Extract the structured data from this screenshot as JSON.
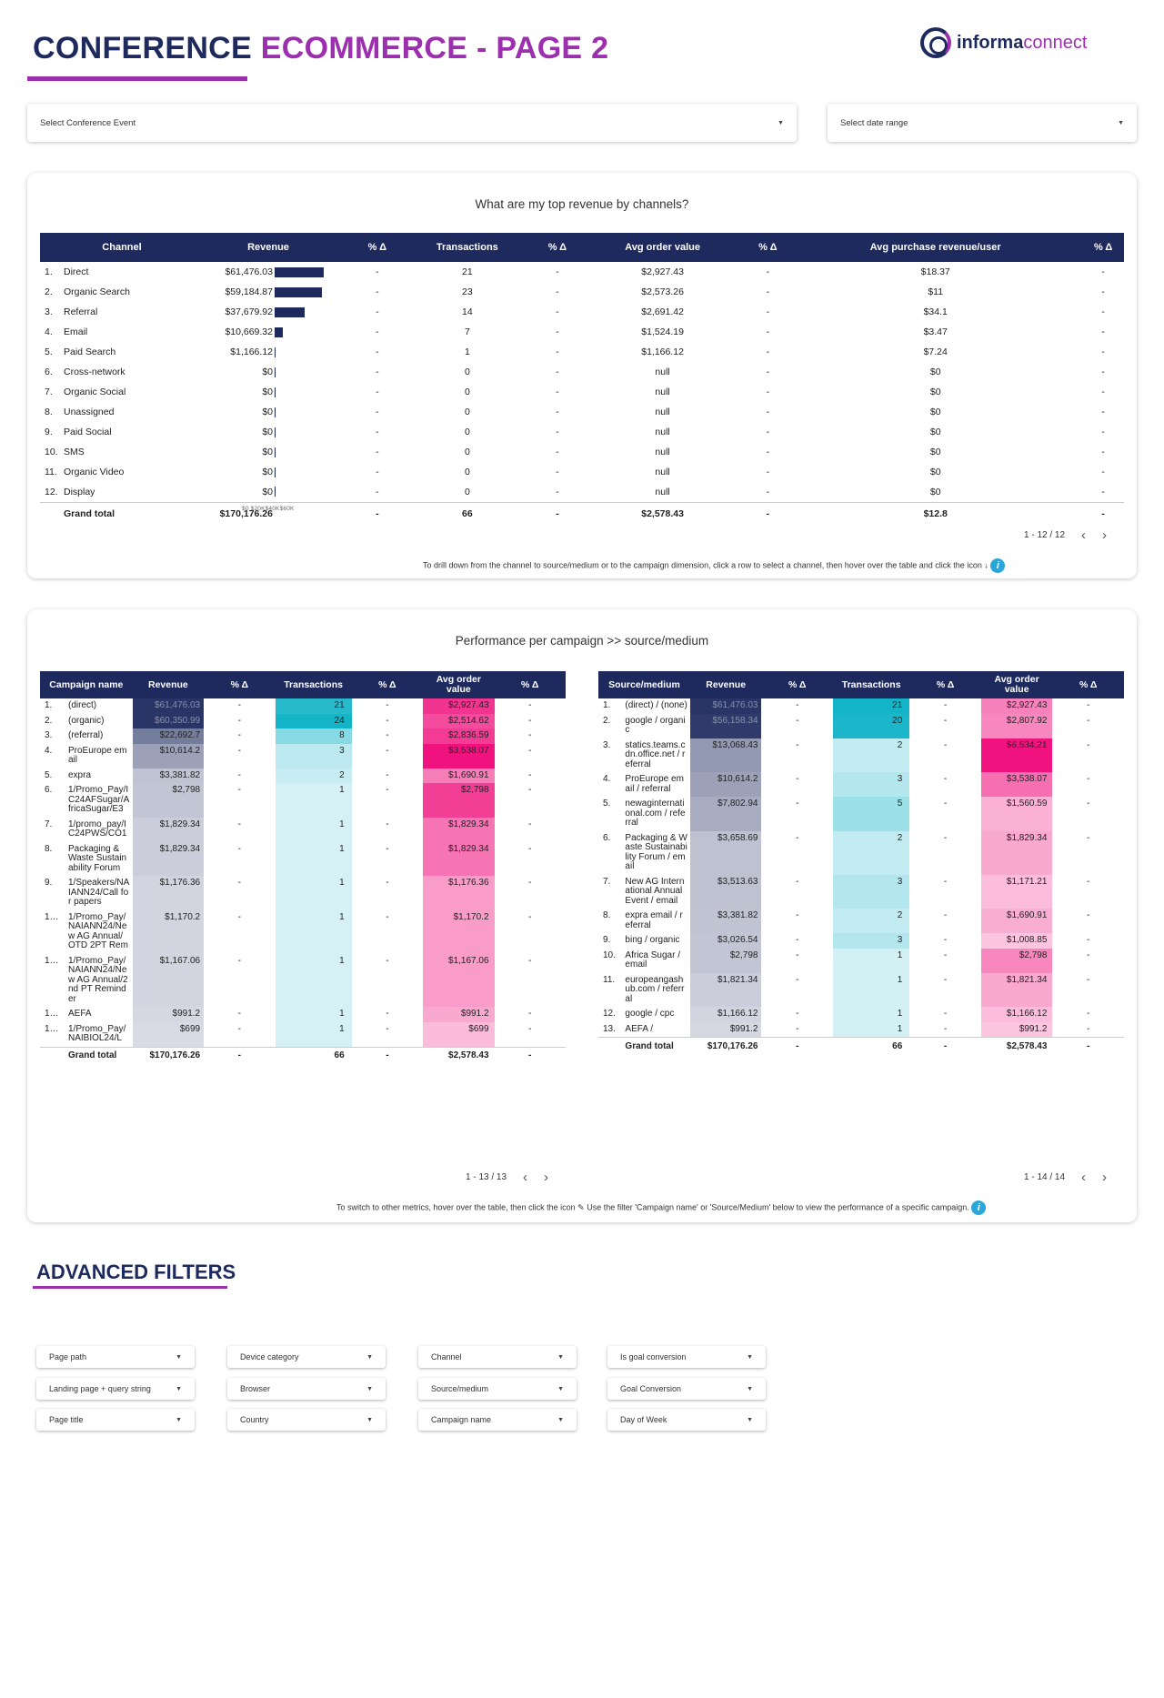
{
  "header": {
    "title_part1": "CONFERENCE",
    "title_part2": "ECOMMERCE - PAGE 2",
    "logo_part1": "informa",
    "logo_part2": "connect"
  },
  "filters": {
    "event": "Select Conference Event",
    "date": "Select date range"
  },
  "channels_card": {
    "title": "What are my top revenue by channels?",
    "headers": [
      "Channel",
      "Revenue",
      "% Δ",
      "Transactions",
      "% Δ",
      "Avg order value",
      "% Δ",
      "Avg purchase revenue/user",
      "% Δ"
    ],
    "axis": "$0 $20K$40K$60K",
    "rows": [
      {
        "n": "1.",
        "channel": "Direct",
        "revenue": "$61,476.03",
        "rv": 61476.03,
        "transactions": "21",
        "aov": "$2,927.43",
        "apru": "$18.37"
      },
      {
        "n": "2.",
        "channel": "Organic Search",
        "revenue": "$59,184.87",
        "rv": 59184.87,
        "transactions": "23",
        "aov": "$2,573.26",
        "apru": "$11"
      },
      {
        "n": "3.",
        "channel": "Referral",
        "revenue": "$37,679.92",
        "rv": 37679.92,
        "transactions": "14",
        "aov": "$2,691.42",
        "apru": "$34.1"
      },
      {
        "n": "4.",
        "channel": "Email",
        "revenue": "$10,669.32",
        "rv": 10669.32,
        "transactions": "7",
        "aov": "$1,524.19",
        "apru": "$3.47"
      },
      {
        "n": "5.",
        "channel": "Paid Search",
        "revenue": "$1,166.12",
        "rv": 1166.12,
        "transactions": "1",
        "aov": "$1,166.12",
        "apru": "$7.24"
      },
      {
        "n": "6.",
        "channel": "Cross-network",
        "revenue": "$0",
        "rv": 0,
        "transactions": "0",
        "aov": "null",
        "apru": "$0"
      },
      {
        "n": "7.",
        "channel": "Organic Social",
        "revenue": "$0",
        "rv": 0,
        "transactions": "0",
        "aov": "null",
        "apru": "$0"
      },
      {
        "n": "8.",
        "channel": "Unassigned",
        "revenue": "$0",
        "rv": 0,
        "transactions": "0",
        "aov": "null",
        "apru": "$0"
      },
      {
        "n": "9.",
        "channel": "Paid Social",
        "revenue": "$0",
        "rv": 0,
        "transactions": "0",
        "aov": "null",
        "apru": "$0"
      },
      {
        "n": "10.",
        "channel": "SMS",
        "revenue": "$0",
        "rv": 0,
        "transactions": "0",
        "aov": "null",
        "apru": "$0"
      },
      {
        "n": "11.",
        "channel": "Organic Video",
        "revenue": "$0",
        "rv": 0,
        "transactions": "0",
        "aov": "null",
        "apru": "$0"
      },
      {
        "n": "12.",
        "channel": "Display",
        "revenue": "$0",
        "rv": 0,
        "transactions": "0",
        "aov": "null",
        "apru": "$0"
      }
    ],
    "total": {
      "label": "Grand total",
      "revenue": "$170,176.26",
      "transactions": "66",
      "aov": "$2,578.43",
      "apru": "$12.8"
    },
    "dash": "-",
    "pager": "1 - 12 / 12",
    "note": "To drill down from the channel to source/medium or to the campaign dimension, click a row to select a channel, then hover over the table and click the icon"
  },
  "perf_card": {
    "title": "Performance per campaign >> source/medium",
    "campaign_headers": [
      "Campaign name",
      "Revenue",
      "% Δ",
      "Transactions",
      "% Δ",
      "Avg order value",
      "% Δ"
    ],
    "source_headers": [
      "Source/medium",
      "Revenue",
      "% Δ",
      "Transactions",
      "% Δ",
      "Avg order value",
      "% Δ"
    ],
    "campaigns": [
      {
        "n": "1.",
        "name": "(direct)",
        "rev": "$61,476.03",
        "rv": 61476.03,
        "tx": "21",
        "t": 21,
        "aov": "$2,927.43",
        "a": 2927.43
      },
      {
        "n": "2.",
        "name": "(organic)",
        "rev": "$60,350.99",
        "rv": 60350.99,
        "tx": "24",
        "t": 24,
        "aov": "$2,514.62",
        "a": 2514.62
      },
      {
        "n": "3.",
        "name": "(referral)",
        "rev": "$22,692.7",
        "rv": 22692.7,
        "tx": "8",
        "t": 8,
        "aov": "$2,836.59",
        "a": 2836.59
      },
      {
        "n": "4.",
        "name": "ProEurope email",
        "rev": "$10,614.2",
        "rv": 10614.2,
        "tx": "3",
        "t": 3,
        "aov": "$3,538.07",
        "a": 3538.07
      },
      {
        "n": "5.",
        "name": "expra",
        "rev": "$3,381.82",
        "rv": 3381.82,
        "tx": "2",
        "t": 2,
        "aov": "$1,690.91",
        "a": 1690.91
      },
      {
        "n": "6.",
        "name": "1/Promo_Pay/IC24AFSugar/AfricaSugar/E3",
        "rev": "$2,798",
        "rv": 2798,
        "tx": "1",
        "t": 1,
        "aov": "$2,798",
        "a": 2798
      },
      {
        "n": "7.",
        "name": "1/promo_pay/IC24PWS/CO1",
        "rev": "$1,829.34",
        "rv": 1829.34,
        "tx": "1",
        "t": 1,
        "aov": "$1,829.34",
        "a": 1829.34
      },
      {
        "n": "8.",
        "name": "Packaging & Waste Sustainability Forum",
        "rev": "$1,829.34",
        "rv": 1829.34,
        "tx": "1",
        "t": 1,
        "aov": "$1,829.34",
        "a": 1829.34
      },
      {
        "n": "9.",
        "name": "1/Speakers/NAIANN24/Call for papers",
        "rev": "$1,176.36",
        "rv": 1176.36,
        "tx": "1",
        "t": 1,
        "aov": "$1,176.36",
        "a": 1176.36
      },
      {
        "n": "1…",
        "name": "1/Promo_Pay/NAIANN24/New AG Annual/OTD 2PT Rem",
        "rev": "$1,170.2",
        "rv": 1170.2,
        "tx": "1",
        "t": 1,
        "aov": "$1,170.2",
        "a": 1170.2
      },
      {
        "n": "1…",
        "name": "1/Promo_Pay/NAIANN24/New AG Annual/2nd PT Reminder",
        "rev": "$1,167.06",
        "rv": 1167.06,
        "tx": "1",
        "t": 1,
        "aov": "$1,167.06",
        "a": 1167.06
      },
      {
        "n": "1…",
        "name": "AEFA",
        "rev": "$991.2",
        "rv": 991.2,
        "tx": "1",
        "t": 1,
        "aov": "$991.2",
        "a": 991.2
      },
      {
        "n": "1…",
        "name": "1/Promo_Pay/NAIBIOL24/L",
        "rev": "$699",
        "rv": 699,
        "tx": "1",
        "t": 1,
        "aov": "$699",
        "a": 699
      }
    ],
    "sources": [
      {
        "n": "1.",
        "name": "(direct) / (none)",
        "rev": "$61,476.03",
        "rv": 61476.03,
        "tx": "21",
        "t": 21,
        "aov": "$2,927.43",
        "a": 2927.43
      },
      {
        "n": "2.",
        "name": "google / organic",
        "rev": "$56,158.34",
        "rv": 56158.34,
        "tx": "20",
        "t": 20,
        "aov": "$2,807.92",
        "a": 2807.92
      },
      {
        "n": "3.",
        "name": "statics.teams.cdn.office.net / referral",
        "rev": "$13,068.43",
        "rv": 13068.43,
        "tx": "2",
        "t": 2,
        "aov": "$6,534.21",
        "a": 6534.21
      },
      {
        "n": "4.",
        "name": "ProEurope email / referral",
        "rev": "$10,614.2",
        "rv": 10614.2,
        "tx": "3",
        "t": 3,
        "aov": "$3,538.07",
        "a": 3538.07
      },
      {
        "n": "5.",
        "name": "newaginternational.com / referral",
        "rev": "$7,802.94",
        "rv": 7802.94,
        "tx": "5",
        "t": 5,
        "aov": "$1,560.59",
        "a": 1560.59
      },
      {
        "n": "6.",
        "name": "Packaging & Waste Sustainability Forum / email",
        "rev": "$3,658.69",
        "rv": 3658.69,
        "tx": "2",
        "t": 2,
        "aov": "$1,829.34",
        "a": 1829.34
      },
      {
        "n": "7.",
        "name": "New AG International Annual Event / email",
        "rev": "$3,513.63",
        "rv": 3513.63,
        "tx": "3",
        "t": 3,
        "aov": "$1,171.21",
        "a": 1171.21
      },
      {
        "n": "8.",
        "name": "expra email / referral",
        "rev": "$3,381.82",
        "rv": 3381.82,
        "tx": "2",
        "t": 2,
        "aov": "$1,690.91",
        "a": 1690.91
      },
      {
        "n": "9.",
        "name": "bing / organic",
        "rev": "$3,026.54",
        "rv": 3026.54,
        "tx": "3",
        "t": 3,
        "aov": "$1,008.85",
        "a": 1008.85
      },
      {
        "n": "10.",
        "name": "Africa Sugar / email",
        "rev": "$2,798",
        "rv": 2798,
        "tx": "1",
        "t": 1,
        "aov": "$2,798",
        "a": 2798
      },
      {
        "n": "11.",
        "name": "europeangashub.com / referral",
        "rev": "$1,821.34",
        "rv": 1821.34,
        "tx": "1",
        "t": 1,
        "aov": "$1,821.34",
        "a": 1821.34
      },
      {
        "n": "12.",
        "name": "google / cpc",
        "rev": "$1,166.12",
        "rv": 1166.12,
        "tx": "1",
        "t": 1,
        "aov": "$1,166.12",
        "a": 1166.12
      },
      {
        "n": "13.",
        "name": "AEFA /",
        "rev": "$991.2",
        "rv": 991.2,
        "tx": "1",
        "t": 1,
        "aov": "$991.2",
        "a": 991.2
      }
    ],
    "total": {
      "label": "Grand total",
      "revenue": "$170,176.26",
      "transactions": "66",
      "aov": "$2,578.43"
    },
    "pager_left": "1 - 13 / 13",
    "pager_right": "1 - 14 / 14",
    "note1": "To switch to other metrics, hover over the table, then click the icon",
    "note2": "Use the filter 'Campaign name' or 'Source/Medium' below to view the performance of a specific campaign."
  },
  "advanced_filters": {
    "title": "ADVANCED FILTERS",
    "rows": [
      [
        "Page path",
        "Device category",
        "Channel",
        "Is goal conversion"
      ],
      [
        "Landing page + query string",
        "Browser",
        "Source/medium",
        "Goal Conversion"
      ],
      [
        "Page title",
        "Country",
        "Campaign name",
        "Day of Week"
      ]
    ]
  },
  "colors": {
    "navy": "#1e2a5e",
    "purple": "#9b2fae",
    "teal": "#14b4c8",
    "pink": "#f0137f",
    "info": "#2aa7d8"
  }
}
